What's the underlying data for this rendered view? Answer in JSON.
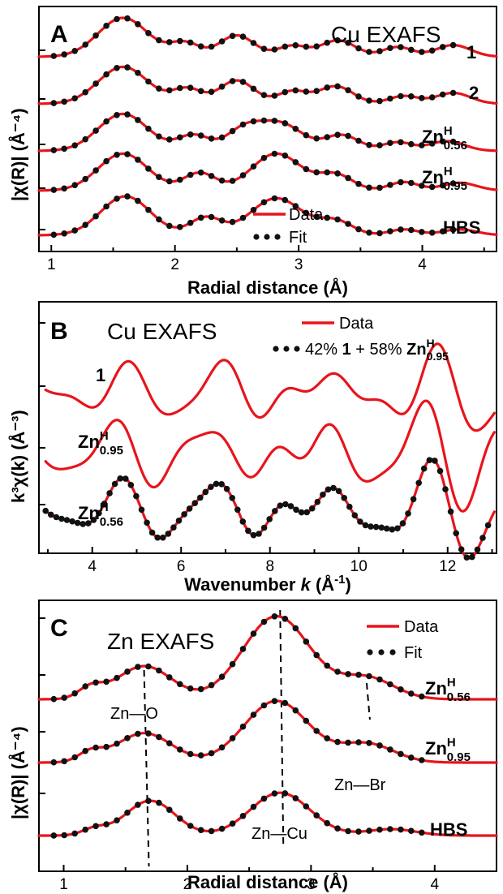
{
  "chart_data": [
    {
      "panel": "A",
      "type": "line",
      "title": "Cu EXAFS",
      "xlabel": "Radial distance (Å)",
      "ylabel": "|χ(R)| (Å⁻⁴)",
      "xlim": [
        0.9,
        4.6
      ],
      "xticks": [
        1,
        2,
        3,
        4
      ],
      "grid": false,
      "legend": {
        "position": "bottom-right",
        "entries": [
          "Data",
          "Fit"
        ]
      },
      "series": [
        {
          "label": "1",
          "label_sub": "",
          "label_sup": "",
          "peaks": [
            [
              1.58,
              1.0,
              0.2
            ],
            [
              2.08,
              0.35,
              0.12
            ],
            [
              2.5,
              0.55,
              0.14
            ],
            [
              2.95,
              0.28,
              0.12
            ],
            [
              3.32,
              0.42,
              0.14
            ],
            [
              3.8,
              0.25,
              0.12
            ],
            [
              4.25,
              0.3,
              0.14
            ]
          ]
        },
        {
          "label": "2",
          "label_sub": "",
          "label_sup": "",
          "peaks": [
            [
              1.58,
              0.95,
              0.2
            ],
            [
              2.1,
              0.38,
              0.12
            ],
            [
              2.5,
              0.6,
              0.14
            ],
            [
              2.95,
              0.32,
              0.12
            ],
            [
              3.3,
              0.45,
              0.14
            ],
            [
              3.85,
              0.2,
              0.12
            ],
            [
              4.25,
              0.28,
              0.14
            ]
          ]
        },
        {
          "label": "Zn",
          "label_sub": "0.56",
          "label_sup": "H",
          "peaks": [
            [
              1.58,
              0.95,
              0.2
            ],
            [
              2.15,
              0.4,
              0.13
            ],
            [
              2.55,
              0.5,
              0.14
            ],
            [
              2.85,
              0.7,
              0.18
            ],
            [
              3.35,
              0.4,
              0.14
            ],
            [
              3.8,
              0.22,
              0.12
            ],
            [
              4.2,
              0.25,
              0.14
            ]
          ]
        },
        {
          "label": "Zn",
          "label_sub": "0.95",
          "label_sup": "H",
          "peaks": [
            [
              1.58,
              0.95,
              0.2
            ],
            [
              2.2,
              0.45,
              0.13
            ],
            [
              2.82,
              0.95,
              0.2
            ],
            [
              3.3,
              0.4,
              0.14
            ],
            [
              3.85,
              0.22,
              0.12
            ],
            [
              4.3,
              0.2,
              0.14
            ]
          ]
        },
        {
          "label": "HBS",
          "label_sub": "",
          "label_sup": "",
          "peaks": [
            [
              1.6,
              1.0,
              0.2
            ],
            [
              2.25,
              0.45,
              0.13
            ],
            [
              2.82,
              0.95,
              0.21
            ],
            [
              3.3,
              0.35,
              0.14
            ],
            [
              3.85,
              0.15,
              0.12
            ],
            [
              4.3,
              0.15,
              0.14
            ]
          ]
        }
      ]
    },
    {
      "panel": "B",
      "type": "line",
      "title": "Cu EXAFS",
      "xlabel": "Wavenumber k (Å⁻¹)",
      "xlabel_main": "Wavenumber ",
      "xlabel_var": "k",
      "xlabel_unit": " (Å",
      "xlabel_exp": "-1",
      "xlabel_close": ")",
      "ylabel": "k³χ(k) (Å⁻³)",
      "xlim": [
        2.8,
        13.1
      ],
      "xticks": [
        4,
        6,
        8,
        10,
        12
      ],
      "grid": false,
      "legend": {
        "position": "top-right",
        "data": "Data",
        "fit_prefix": "42% ",
        "fit_bold1": "1",
        "fit_mid": " + 58% ",
        "fit_zn": "Zn",
        "fit_sup": "H",
        "fit_sub": "0.95"
      },
      "series": [
        {
          "label": "1",
          "label_sub": "",
          "label_sup": "",
          "seed": 1.3,
          "amp": 1.0
        },
        {
          "label": "Zn",
          "label_sub": "0.95",
          "label_sup": "H",
          "seed": 2.1,
          "amp": 1.15
        },
        {
          "label": "Zn",
          "label_sub": "0.56",
          "label_sup": "H",
          "seed": 1.7,
          "amp": 1.05
        }
      ]
    },
    {
      "panel": "C",
      "type": "line",
      "title": "Zn EXAFS",
      "xlabel": "Radial distance (Å)",
      "ylabel": "|χ(R)| (Å⁻⁴)",
      "xlim": [
        0.8,
        4.5
      ],
      "xticks": [
        1,
        2,
        3,
        4
      ],
      "grid": false,
      "legend": {
        "position": "top-right",
        "entries": [
          "Data",
          "Fit"
        ]
      },
      "annotations": [
        {
          "text_left": "Zn",
          "text_right": "O",
          "x": 1.65
        },
        {
          "text_left": "Zn",
          "text_right": "Cu",
          "x": 2.75
        },
        {
          "text_left": "Zn",
          "text_right": "Br",
          "x": 3.45
        }
      ],
      "series": [
        {
          "label": "Zn",
          "label_sub": "0.56",
          "label_sup": "H",
          "peaks": [
            [
              1.22,
              0.2,
              0.1
            ],
            [
              1.65,
              0.62,
              0.22
            ],
            [
              2.72,
              1.55,
              0.27
            ],
            [
              3.45,
              0.4,
              0.22
            ]
          ]
        },
        {
          "label": "Zn",
          "label_sub": "0.95",
          "label_sup": "H",
          "peaks": [
            [
              1.22,
              0.18,
              0.1
            ],
            [
              1.65,
              0.55,
              0.22
            ],
            [
              2.72,
              1.15,
              0.26
            ],
            [
              3.45,
              0.35,
              0.22
            ]
          ]
        },
        {
          "label": "HBS",
          "label_sub": "",
          "label_sup": "",
          "peaks": [
            [
              1.25,
              0.12,
              0.1
            ],
            [
              1.7,
              0.65,
              0.2
            ],
            [
              2.75,
              0.8,
              0.24
            ],
            [
              3.65,
              0.12,
              0.2
            ]
          ]
        }
      ]
    }
  ],
  "legend_labels": {
    "data": "Data",
    "fit": "Fit"
  },
  "colors": {
    "data": "#e8141c",
    "fit": "#111111",
    "axis": "#000000"
  }
}
